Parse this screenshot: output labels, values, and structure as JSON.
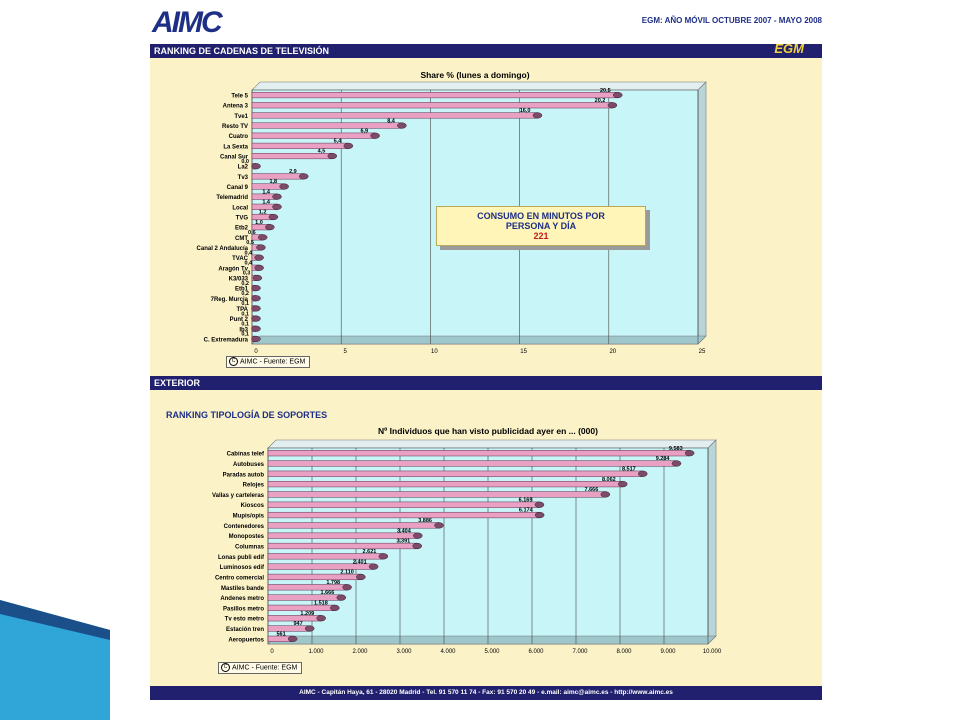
{
  "header": {
    "logo_text": "AIMC",
    "survey_title": "EGM: AÑO MÓVIL OCTUBRE 2007 - MAYO 2008"
  },
  "tv_section": {
    "band_title": "RANKING DE CADENAS DE TELEVISIÓN",
    "band_logo": "EGM",
    "callout": {
      "line1": "CONSUMO EN MINUTOS POR",
      "line2": "PERSONA Y DÍA",
      "value": "221"
    },
    "source_label": "AIMC - Fuente: EGM"
  },
  "exterior_section": {
    "band_title": "EXTERIOR",
    "section_title": "RANKING TIPOLOGÍA DE SOPORTES",
    "source_label": "AIMC - Fuente: EGM"
  },
  "footer": {
    "text": "AIMC - Capitán Haya, 61 - 28020 Madrid  - Tel. 91 570 11 74 - Fax: 91 570 20 49 - e.mail: aimc@aimc.es - http://www.aimc.es"
  },
  "colors": {
    "navy": "#20206e",
    "plot_bg": "#c8f6f8",
    "bar": "#e9a0c2",
    "bar_dark": "#7d4b6a",
    "panel": "#fbf2c8"
  },
  "chart_data": [
    {
      "type": "bar",
      "orientation": "horizontal",
      "title": "Share % (lunes a domingo)",
      "categories": [
        "Tele 5",
        "Antena 3",
        "Tve1",
        "Resto TV",
        "Cuatro",
        "La Sexta",
        "Canal Sur",
        "La2",
        "Tv3",
        "Canal 9",
        "Telemadrid",
        "Local",
        "TVG",
        "Etb2",
        "CMT",
        "Canal 2 Andalucía",
        "TVAC",
        "Aragón Tv",
        "K3/033",
        "Etb1",
        "7Reg. Murcia",
        "TPA",
        "Punt 2",
        "Ib3",
        "C. Extremadura"
      ],
      "values": [
        20.5,
        20.2,
        16.0,
        8.4,
        6.9,
        5.4,
        4.5,
        0.0,
        2.9,
        1.8,
        1.4,
        1.4,
        1.2,
        1.0,
        0.6,
        0.5,
        0.4,
        0.4,
        0.3,
        0.2,
        0.2,
        0.1,
        0.1,
        0.1,
        0.1
      ],
      "value_labels": [
        "20,5",
        "20,2",
        "16,0",
        "8,4",
        "6,9",
        "5,4",
        "4,5",
        "0,0",
        "2,9",
        "1,8",
        "1,4",
        "1,4",
        "1,2",
        "1,0",
        "0,6",
        "0,5",
        "0,4",
        "0,4",
        "0,3",
        "0,2",
        "0,2",
        "0,1",
        "0,1",
        "0,1",
        "0,1"
      ],
      "x_ticks": [
        "0",
        "5",
        "10",
        "15",
        "20",
        "25"
      ],
      "xlim": [
        0,
        25
      ],
      "grid": true
    },
    {
      "type": "bar",
      "orientation": "horizontal",
      "title": "Nº Individuos que han visto publicidad ayer en ... (000)",
      "categories": [
        "Cabinas telef",
        "Autobuses",
        "Paradas autob",
        "Relojes",
        "Vallas y carteleras",
        "Kioscos",
        "Mupis/opis",
        "Contenedores",
        "Monopostes",
        "Columnas",
        "Lonas publi edif",
        "Luminosos edif",
        "Centro comercial",
        "Mastiles bande",
        "Andenes metro",
        "Pasillos metro",
        "Tv esto metro",
        "Estación tren",
        "Aeropuertos"
      ],
      "values": [
        9583,
        9284,
        8517,
        8062,
        7666,
        6169,
        6174,
        3886,
        3404,
        3391,
        2621,
        2401,
        2110,
        1798,
        1666,
        1518,
        1209,
        947,
        561
      ],
      "value_labels": [
        "9.583",
        "9.284",
        "8.517",
        "8.062",
        "7.666",
        "6.169",
        "6.174",
        "3.886",
        "3.404",
        "3.391",
        "2.621",
        "2.401",
        "2.110",
        "1.798",
        "1.666",
        "1.518",
        "1.209",
        "947",
        "561"
      ],
      "x_ticks": [
        "0",
        "1.000",
        "2.000",
        "3.000",
        "4.000",
        "5.000",
        "6.000",
        "7.000",
        "8.000",
        "9.000",
        "10.000"
      ],
      "xlim": [
        0,
        10000
      ],
      "grid": true
    }
  ]
}
